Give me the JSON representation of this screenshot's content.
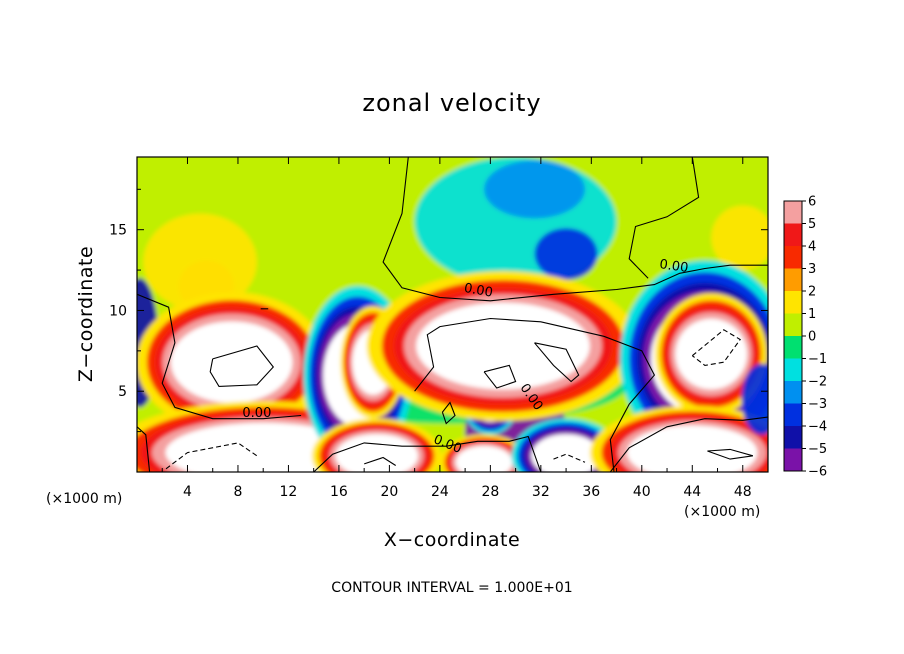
{
  "chart_data": {
    "type": "heatmap",
    "title": "zonal velocity",
    "xlabel": "X−coordinate",
    "ylabel": "Z−coordinate",
    "x_unit_left": "(×1000 m)",
    "x_unit_right": "(×1000 m)",
    "xlim": [
      0,
      50
    ],
    "ylim": [
      0,
      19.5
    ],
    "x_ticks": [
      4,
      8,
      12,
      16,
      20,
      24,
      28,
      32,
      36,
      40,
      44,
      48
    ],
    "x_tick_labels": [
      "4",
      "8",
      "12",
      "16",
      "20",
      "24",
      "28",
      "32",
      "36",
      "40",
      "44",
      "48"
    ],
    "y_ticks": [
      5,
      10,
      15
    ],
    "y_tick_labels": [
      "5",
      "10",
      "15"
    ],
    "colorbar": {
      "ticks": [
        6,
        5,
        4,
        3,
        2,
        1,
        0,
        -1,
        -2,
        -3,
        -4,
        -5,
        -6
      ],
      "tick_labels": [
        "6",
        "5",
        "4",
        "3",
        "2",
        "1",
        "0",
        "−1",
        "−2",
        "−3",
        "−4",
        "−5",
        "−6"
      ],
      "range": [
        -6,
        6
      ]
    },
    "contour_labels": [
      "0.00",
      "0.00",
      "0.00",
      "0.00",
      "0.00"
    ],
    "footer": "CONTOUR INTERVAL = 1.000E+01",
    "colors": {
      "c6": "#f4a0a0",
      "c5": "#f01818",
      "c4": "#f82a00",
      "c3": "#ff9c00",
      "c2": "#ffe400",
      "c1": "#c0ef00",
      "c0": "#4cd800",
      "cm1": "#00e070",
      "cm2": "#00e0e0",
      "cm3": "#0090f0",
      "cm4": "#0030e0",
      "cm5": "#1010a8",
      "cm6": "#7a12a8",
      "saturated": "#ffffff"
    },
    "regions": [
      {
        "kind": "background",
        "x_range": [
          0,
          50
        ],
        "z_range": [
          0,
          19.5
        ],
        "value": 0.6
      },
      {
        "kind": "blob",
        "center": [
          3,
          17
        ],
        "radius": [
          5,
          3
        ],
        "value": 1.4
      },
      {
        "kind": "blob",
        "center": [
          5.5,
          11.5
        ],
        "radius": [
          2.2,
          1.6
        ],
        "value": 3.0
      },
      {
        "kind": "blob",
        "center": [
          5,
          13
        ],
        "radius": [
          4.5,
          3
        ],
        "value": 1.8
      },
      {
        "kind": "blob",
        "center": [
          30,
          15.5
        ],
        "radius": [
          8,
          4
        ],
        "value": -1.6
      },
      {
        "kind": "blob",
        "center": [
          31.5,
          17.5
        ],
        "radius": [
          4,
          1.8
        ],
        "value": -3.4
      },
      {
        "kind": "blob",
        "center": [
          34,
          13.5
        ],
        "radius": [
          2.5,
          1.6
        ],
        "value": -4.0
      },
      {
        "kind": "blob",
        "center": [
          48,
          14.5
        ],
        "radius": [
          2.5,
          2
        ],
        "value": 2.0
      },
      {
        "kind": "blob",
        "center": [
          25,
          5.5
        ],
        "radius": [
          14,
          2.5
        ],
        "value": -0.6
      },
      {
        "kind": "blob",
        "center": [
          0.2,
          8
        ],
        "radius": [
          1.5,
          4
        ],
        "value": -4.5
      },
      {
        "kind": "blob",
        "center": [
          7.5,
          6.8
        ],
        "radius": [
          5.6,
          3.0
        ],
        "value": 8.0
      },
      {
        "kind": "blob",
        "center": [
          10,
          1.2
        ],
        "radius": [
          9,
          2.2
        ],
        "value": 8.0
      },
      {
        "kind": "blob",
        "center": [
          17.5,
          6
        ],
        "radius": [
          3.2,
          3.8
        ],
        "value": -7.0
      },
      {
        "kind": "blob",
        "center": [
          18.7,
          6.8
        ],
        "radius": [
          1.9,
          2.4
        ],
        "value": 7.0
      },
      {
        "kind": "blob",
        "center": [
          19,
          1.0
        ],
        "radius": [
          3.8,
          1.6
        ],
        "value": 7.0
      },
      {
        "kind": "blob",
        "center": [
          30,
          2.5
        ],
        "radius": [
          4,
          3.5
        ],
        "value": -5.5
      },
      {
        "kind": "blob",
        "center": [
          28,
          4.2
        ],
        "radius": [
          1.6,
          1.3
        ],
        "value": -7.0
      },
      {
        "kind": "blob",
        "center": [
          27.5,
          0.6
        ],
        "radius": [
          2.6,
          1.2
        ],
        "value": 7.0
      },
      {
        "kind": "blob",
        "center": [
          29,
          7.8
        ],
        "radius": [
          8,
          3.2
        ],
        "value": 8.0
      },
      {
        "kind": "blob",
        "center": [
          34,
          1.0
        ],
        "radius": [
          3.2,
          1.6
        ],
        "value": -7.0
      },
      {
        "kind": "blob",
        "center": [
          45,
          7
        ],
        "radius": [
          5,
          4.2
        ],
        "value": -7.0
      },
      {
        "kind": "blob",
        "center": [
          45.5,
          7.3
        ],
        "radius": [
          3.3,
          2.6
        ],
        "value": 8.0
      },
      {
        "kind": "blob",
        "center": [
          44,
          1.2
        ],
        "radius": [
          6,
          2.0
        ],
        "value": 7.5
      },
      {
        "kind": "blob",
        "center": [
          49.5,
          4.5
        ],
        "radius": [
          1.6,
          2.2
        ],
        "value": -4.0
      }
    ]
  }
}
